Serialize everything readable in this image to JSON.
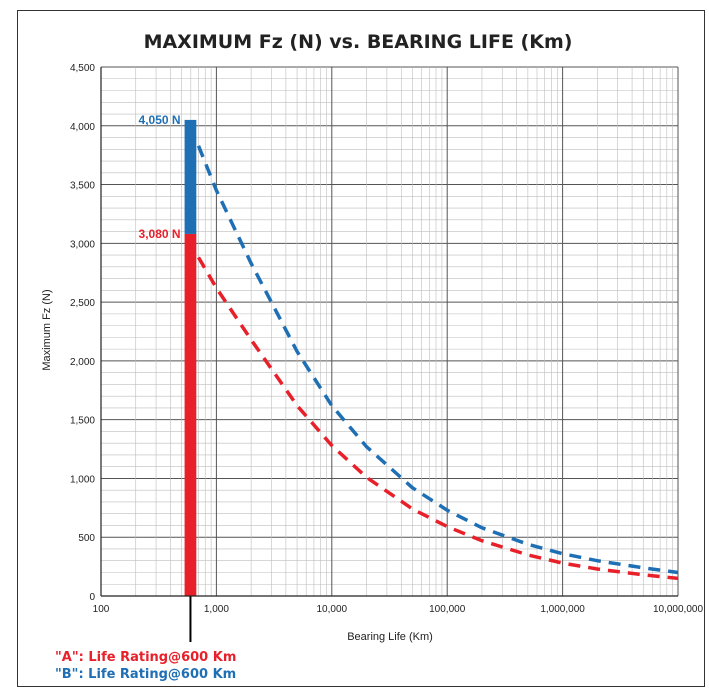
{
  "chart_data": {
    "type": "line",
    "title": "MAXIMUM Fz (N) vs. BEARING LIFE (Km)",
    "xlabel": "Bearing Life (Km)",
    "ylabel": "Maximum Fz (N)",
    "x_scale": "log",
    "xlim": [
      100,
      10000000
    ],
    "ylim": [
      0,
      4500
    ],
    "grid": true,
    "x_ticks": [
      "100",
      "1,000",
      "10,000",
      "100,000",
      "1,000,000",
      "10,000,000"
    ],
    "y_ticks": [
      "0",
      "500",
      "1,000",
      "1,500",
      "2,000",
      "2,500",
      "3,000",
      "3,500",
      "4,000",
      "4,500"
    ],
    "bar": {
      "x_range": [
        530,
        670
      ],
      "segments": [
        {
          "from": 0,
          "to": 3080,
          "color": "#e8202a"
        },
        {
          "from": 3080,
          "to": 4050,
          "color": "#1f6fb5"
        }
      ]
    },
    "series": [
      {
        "color": "#e8202a",
        "line_style": "dashed",
        "x": [
          700,
          1000,
          2000,
          5000,
          10000,
          20000,
          50000,
          100000,
          200000,
          500000,
          1000000,
          2000000,
          5000000,
          10000000
        ],
        "y": [
          2880,
          2620,
          2180,
          1620,
          1280,
          1010,
          740,
          590,
          470,
          350,
          280,
          230,
          180,
          150
        ]
      },
      {
        "color": "#1f6fb5",
        "line_style": "dashed",
        "x": [
          700,
          1000,
          2000,
          5000,
          10000,
          20000,
          50000,
          100000,
          200000,
          500000,
          1000000,
          2000000,
          5000000,
          10000000
        ],
        "y": [
          3830,
          3450,
          2830,
          2080,
          1620,
          1270,
          920,
          730,
          580,
          440,
          360,
          300,
          240,
          200
        ]
      }
    ],
    "annotations": [
      {
        "text": "4,050 N",
        "value": 4050,
        "color": "#1f6fb5"
      },
      {
        "text": "3,080 N",
        "value": 3080,
        "color": "#e8202a"
      }
    ]
  },
  "legend": [
    {
      "text": "\"A\": Life Rating@600 Km",
      "color": "#e8202a"
    },
    {
      "text": "\"B\": Life Rating@600 Km",
      "color": "#1f6fb5"
    }
  ]
}
